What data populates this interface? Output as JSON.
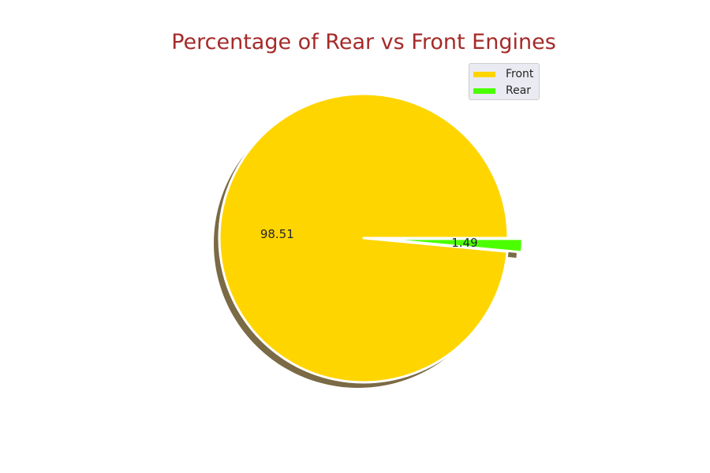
{
  "chart_data": {
    "type": "pie",
    "title": "Percentage of Rear vs Front Engines",
    "categories": [
      "Front",
      "Rear"
    ],
    "values": [
      98.51,
      1.49
    ],
    "value_labels": [
      "98.51",
      "1.49"
    ],
    "colors": [
      "#ffd500",
      "#4cff00"
    ],
    "explode": [
      0,
      0.1
    ],
    "shadow": true,
    "start_angle_deg": 0,
    "legend_entries": [
      "Front",
      "Rear"
    ],
    "legend_placement": "top-right"
  },
  "style": {
    "title_color": "#a52a2a",
    "label_color": "#262626",
    "shadow_color": "#7a6a45",
    "edge_color": "#ffffff"
  }
}
